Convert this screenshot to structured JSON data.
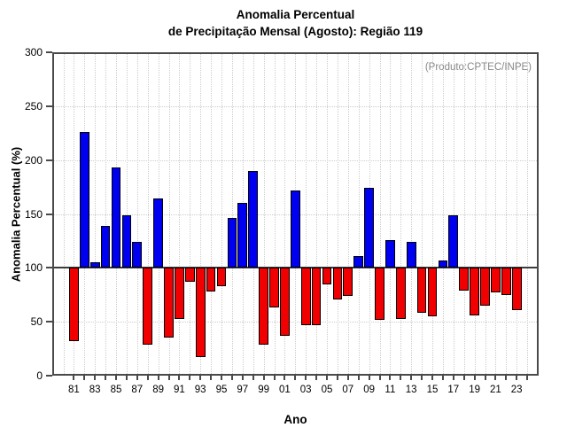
{
  "title": {
    "line1": "Anomalia Percentual",
    "line2": "de Precipitação Mensal (Agosto): Região 119"
  },
  "annotation": {
    "text": "(Produto:CPTEC/INPE)",
    "color": "#888888"
  },
  "axes": {
    "y_label": "Anomalia Percentual (%)",
    "x_label": "Ano",
    "y_tick_labels": [
      "0",
      "50",
      "100",
      "150",
      "200",
      "250",
      "300"
    ],
    "x_tick_labels": [
      "81",
      "83",
      "85",
      "87",
      "89",
      "91",
      "93",
      "95",
      "97",
      "99",
      "01",
      "03",
      "05",
      "07",
      "09",
      "11",
      "13",
      "15",
      "17",
      "19",
      "21",
      "23"
    ]
  },
  "colors": {
    "positive_bar": "#0000f0",
    "negative_bar": "#f00000",
    "bar_border": "#000000",
    "baseline": "#3c3c3c",
    "frame": "#4a4a4a",
    "grid": "#cccccc",
    "annotation": "#888888"
  },
  "chart_data": {
    "type": "bar",
    "title": "Anomalia Percentual de Precipitação Mensal (Agosto): Região 119",
    "xlabel": "Ano",
    "ylabel": "Anomalia Percentual (%)",
    "ylim": [
      0,
      300
    ],
    "y_ticks": [
      0,
      50,
      100,
      150,
      200,
      250,
      300
    ],
    "baseline": 100,
    "grid": true,
    "legend_position": "none",
    "annotation": "(Produto:CPTEC/INPE)",
    "color_rule": "blue if value >= 100, red if value < 100",
    "years": [
      1981,
      1982,
      1983,
      1984,
      1985,
      1986,
      1987,
      1988,
      1989,
      1990,
      1991,
      1992,
      1993,
      1994,
      1995,
      1996,
      1997,
      1998,
      1999,
      2000,
      2001,
      2002,
      2003,
      2004,
      2005,
      2006,
      2007,
      2008,
      2009,
      2010,
      2011,
      2012,
      2013,
      2014,
      2015,
      2016,
      2017,
      2018,
      2019,
      2020,
      2021,
      2022,
      2023
    ],
    "values": [
      32,
      226,
      105,
      139,
      193,
      149,
      124,
      29,
      164,
      35,
      53,
      87,
      17,
      78,
      83,
      146,
      160,
      190,
      29,
      63,
      37,
      172,
      47,
      47,
      85,
      71,
      74,
      111,
      174,
      52,
      126,
      53,
      124,
      58,
      55,
      107,
      149,
      79,
      56,
      65,
      77,
      75,
      61
    ]
  }
}
